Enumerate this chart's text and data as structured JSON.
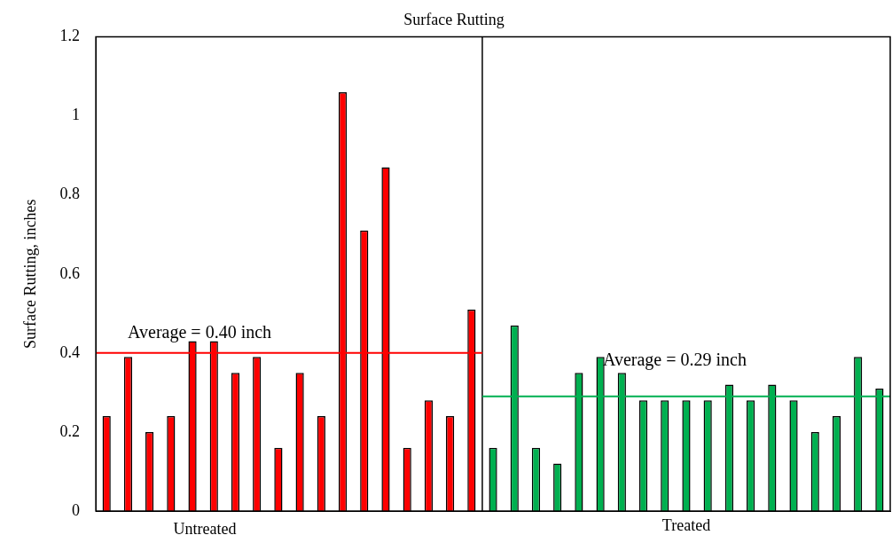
{
  "chart_data": {
    "type": "bar",
    "title": "Surface Rutting",
    "ylabel": "Surface Rutting, inches",
    "categories": [
      null,
      null,
      null,
      null,
      null,
      null,
      null,
      null,
      null,
      null,
      null,
      null,
      null,
      null,
      null,
      null,
      null,
      null,
      null,
      null,
      null,
      null,
      null,
      null,
      null,
      null,
      null,
      null,
      null,
      null,
      null,
      null,
      null,
      null,
      null,
      null,
      null
    ],
    "values": [
      0.24,
      0.39,
      0.2,
      0.24,
      0.43,
      0.43,
      0.35,
      0.39,
      0.16,
      0.35,
      0.24,
      1.06,
      0.71,
      0.87,
      0.16,
      0.28,
      0.24,
      0.51,
      0.16,
      0.47,
      0.16,
      0.12,
      0.35,
      0.39,
      0.35,
      0.28,
      0.28,
      0.28,
      0.28,
      0.32,
      0.28,
      0.32,
      0.28,
      0.2,
      0.24,
      0.39,
      0.31
    ],
    "colors": [
      "#ff0000",
      "#ff0000",
      "#ff0000",
      "#ff0000",
      "#ff0000",
      "#ff0000",
      "#ff0000",
      "#ff0000",
      "#ff0000",
      "#ff0000",
      "#ff0000",
      "#ff0000",
      "#ff0000",
      "#ff0000",
      "#ff0000",
      "#ff0000",
      "#ff0000",
      "#ff0000",
      "#00b050",
      "#00b050",
      "#00b050",
      "#00b050",
      "#00b050",
      "#00b050",
      "#00b050",
      "#00b050",
      "#00b050",
      "#00b050",
      "#00b050",
      "#00b050",
      "#00b050",
      "#00b050",
      "#00b050",
      "#00b050",
      "#00b050",
      "#00b050",
      "#00b050"
    ],
    "ylim": [
      0,
      1.2
    ],
    "yticks": [
      0,
      0.2,
      0.4,
      0.6,
      0.8,
      1,
      1.2
    ],
    "grid": false,
    "legend": false,
    "tick_labels": "y",
    "ref_lines": [
      {
        "axis": "y",
        "value": 0.4,
        "label": "Average = 0.40 inch",
        "color": "#ff0000"
      },
      {
        "axis": "y",
        "value": 0.29,
        "label": "Average = 0.29 inch",
        "color": "#00b050"
      }
    ],
    "annotations": [
      "Untreated",
      "Treated"
    ]
  }
}
